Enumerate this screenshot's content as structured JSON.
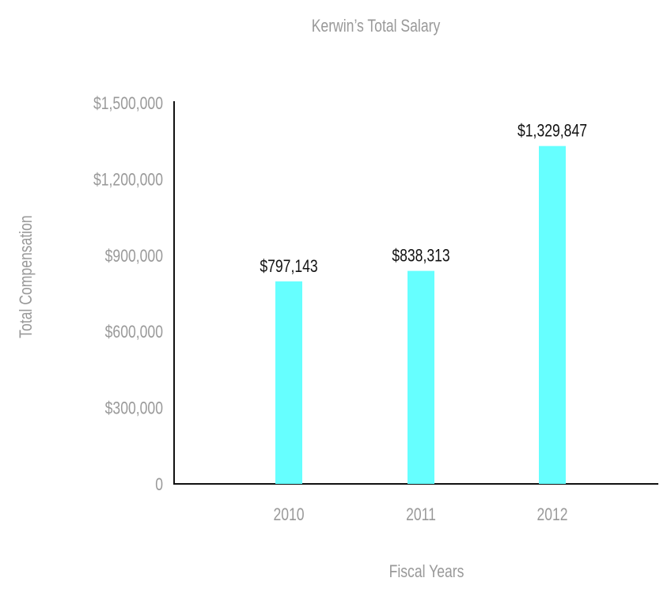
{
  "chart_data": {
    "type": "bar",
    "title": "Kerwin’s Total Salary",
    "xlabel": "Fiscal Years",
    "ylabel": "Total Compensation",
    "categories": [
      "2010",
      "2011",
      "2012"
    ],
    "values": [
      797143,
      838313,
      1329847
    ],
    "data_labels": [
      "$797,143",
      "$838,313",
      "$1,329,847"
    ],
    "yticks": [
      0,
      300000,
      600000,
      900000,
      1200000,
      1500000
    ],
    "ytick_labels": [
      "0",
      "$300,000",
      "$600,000",
      "$900,000",
      "$1,200,000",
      "$1,500,000"
    ],
    "ylim": [
      0,
      1500000
    ],
    "grid": false,
    "colors": {
      "bar": "#66FFFF",
      "axis_text": "#999999",
      "label_text": "#111111",
      "axis_line": "#111111"
    }
  }
}
